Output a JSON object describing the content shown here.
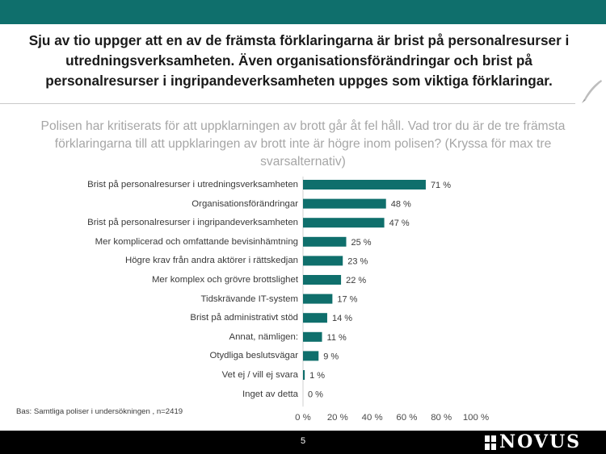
{
  "headline": "Sju av tio uppger att en av de främsta förklaringarna är brist på personalresurser i utredningsverksamheten. Även organisationsförändringar och brist på personalresurser i ingripandeverksamheten uppges som viktiga förklaringar.",
  "question": "Polisen har kritiserats för att uppklarningen av brott går åt fel håll. Vad tror du är de tre främsta förklaringarna till att uppklaringen av brott inte är högre inom polisen? (Kryssa för max tre svarsalternativ)",
  "base_note": "Bas: Samtliga poliser i undersökningen , n=2419",
  "page_number": "5",
  "logo_text": "NOVUS",
  "colors": {
    "bar": "#0f6f6c",
    "top_band": "#0f6f6c",
    "bottom_band": "#000000"
  },
  "chart_data": {
    "type": "bar",
    "orientation": "horizontal",
    "categories": [
      "Brist på personalresurser i utredningsverksamheten",
      "Organisationsförändringar",
      "Brist på personalresurser i ingripandeverksamheten",
      "Mer komplicerad och omfattande bevisinhämtning",
      "Högre krav från andra aktörer i rättskedjan",
      "Mer komplex och grövre brottslighet",
      "Tidskrävande IT-system",
      "Brist på administrativt stöd",
      "Annat, nämligen:",
      "Otydliga beslutsvägar",
      "Vet ej / vill ej svara",
      "Inget av detta"
    ],
    "values": [
      71,
      48,
      47,
      25,
      23,
      22,
      17,
      14,
      11,
      9,
      1,
      0
    ],
    "value_labels": [
      "71 %",
      "48 %",
      "47 %",
      "25 %",
      "23 %",
      "22 %",
      "17 %",
      "14 %",
      "11 %",
      "9 %",
      "1 %",
      "0 %"
    ],
    "xlim": [
      0,
      100
    ],
    "xticks": [
      "0 %",
      "20 %",
      "40 %",
      "60 %",
      "80 %",
      "100 %"
    ],
    "grid": false,
    "legend": "none"
  }
}
